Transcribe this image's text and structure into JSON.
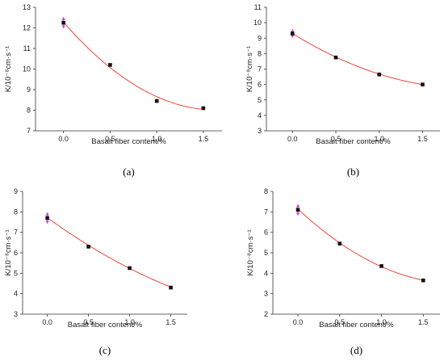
{
  "chart_data": [
    {
      "type": "scatter",
      "panel": "(a)",
      "xlabel": "Basalt fiber content/%",
      "ylabel": "K/10⁻⁸cm·s⁻¹",
      "x": [
        0.0,
        0.5,
        1.0,
        1.5
      ],
      "y": [
        12.25,
        10.2,
        8.45,
        8.1
      ],
      "error": [
        0.25,
        0,
        0,
        0
      ],
      "fit": [
        12.27,
        10.1,
        8.63,
        8.05
      ],
      "xlim": [
        -0.3,
        1.7
      ],
      "ylim": [
        7,
        13
      ],
      "xticks": [
        "0.0",
        "0.5",
        "1.0",
        "1.5"
      ],
      "yticks": [
        "7",
        "8",
        "9",
        "10",
        "11",
        "12",
        "13"
      ]
    },
    {
      "type": "scatter",
      "panel": "(b)",
      "xlabel": "Basalt fiber content/%",
      "ylabel": "K/10⁻⁸cm·s⁻¹",
      "x": [
        0.0,
        0.5,
        1.0,
        1.5
      ],
      "y": [
        9.3,
        7.75,
        6.65,
        6.0
      ],
      "error": [
        0.25,
        0,
        0,
        0
      ],
      "fit": [
        9.3,
        7.78,
        6.67,
        6.0
      ],
      "xlim": [
        -0.3,
        1.7
      ],
      "ylim": [
        3,
        11
      ],
      "xticks": [
        "0.0",
        "0.5",
        "1.0",
        "1.5"
      ],
      "yticks": [
        "3",
        "4",
        "5",
        "6",
        "7",
        "8",
        "9",
        "10",
        "11"
      ]
    },
    {
      "type": "scatter",
      "panel": "(c)",
      "xlabel": "Basalt fiber content/%",
      "ylabel": "K/10⁻⁸cm·s⁻¹",
      "x": [
        0.0,
        0.5,
        1.0,
        1.5
      ],
      "y": [
        7.7,
        6.3,
        5.25,
        4.3
      ],
      "error": [
        0.25,
        0,
        0,
        0
      ],
      "fit": [
        7.72,
        6.35,
        5.25,
        4.32
      ],
      "xlim": [
        -0.3,
        1.7
      ],
      "ylim": [
        3,
        9
      ],
      "xticks": [
        "0.0",
        "0.5",
        "1.0",
        "1.5"
      ],
      "yticks": [
        "3",
        "4",
        "5",
        "6",
        "7",
        "8",
        "9"
      ]
    },
    {
      "type": "scatter",
      "panel": "(d)",
      "xlabel": "Basalt fiber content/%",
      "ylabel": "K/10⁻⁸cm·s⁻¹",
      "x": [
        0.0,
        0.5,
        1.0,
        1.5
      ],
      "y": [
        7.1,
        5.45,
        4.35,
        3.65
      ],
      "error": [
        0.25,
        0,
        0,
        0
      ],
      "fit": [
        7.15,
        5.45,
        4.35,
        3.65
      ],
      "xlim": [
        -0.3,
        1.7
      ],
      "ylim": [
        2,
        8
      ],
      "xticks": [
        "0.0",
        "0.5",
        "1.0",
        "1.5"
      ],
      "yticks": [
        "2",
        "3",
        "4",
        "5",
        "6",
        "7",
        "8"
      ]
    }
  ],
  "colors": {
    "fit_curve": "#e8473f",
    "error_bar": "#c24ec8",
    "points": "#111111",
    "axes": "#333333"
  }
}
